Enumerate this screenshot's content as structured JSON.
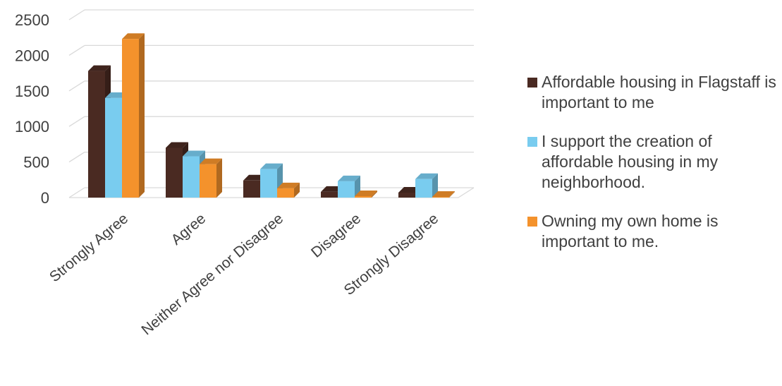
{
  "chart_data": {
    "type": "bar",
    "variant": "3d-clustered-column",
    "categories": [
      "Strongly Agree",
      "Agree",
      "Neither Agree nor Disagree",
      "Disagree",
      "Strongly Disagree"
    ],
    "series": [
      {
        "name": "Affordable housing in Flagstaff is important to me",
        "color": "#4a2a22",
        "values": [
          1780,
          700,
          240,
          80,
          70
        ]
      },
      {
        "name": "I support the creation of affordable housing in my neighborhood.",
        "color": "#79ccef",
        "values": [
          1400,
          580,
          400,
          230,
          260
        ]
      },
      {
        "name": "Owning my own home is important to me.",
        "color": "#f4922c",
        "values": [
          2230,
          470,
          130,
          20,
          10
        ]
      }
    ],
    "y_ticks": [
      "0",
      "500",
      "1000",
      "1500",
      "2000",
      "2500"
    ],
    "ylim": [
      0,
      2500
    ],
    "grid": true,
    "legend_position": "right",
    "title": "",
    "xlabel": "",
    "ylabel": ""
  }
}
